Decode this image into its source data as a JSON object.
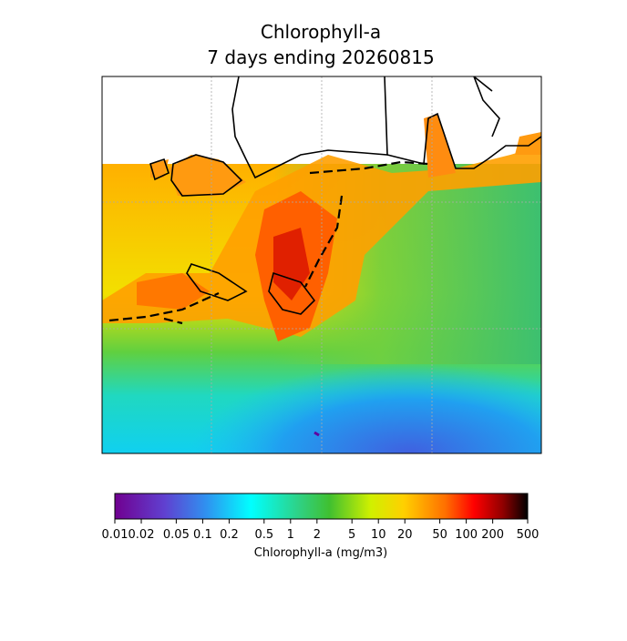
{
  "chart_data": {
    "type": "colorbar",
    "title": [
      "Chlorophyll-a",
      "7 days ending 20260815"
    ],
    "colorbar_label": "Chlorophyll-a (mg/m3)",
    "scale": "log",
    "clim": [
      0.01,
      500
    ],
    "cticks": [
      0.01,
      0.02,
      0.05,
      0.1,
      0.2,
      0.5,
      1,
      2,
      5,
      10,
      20,
      50,
      100,
      200,
      500
    ]
  }
}
